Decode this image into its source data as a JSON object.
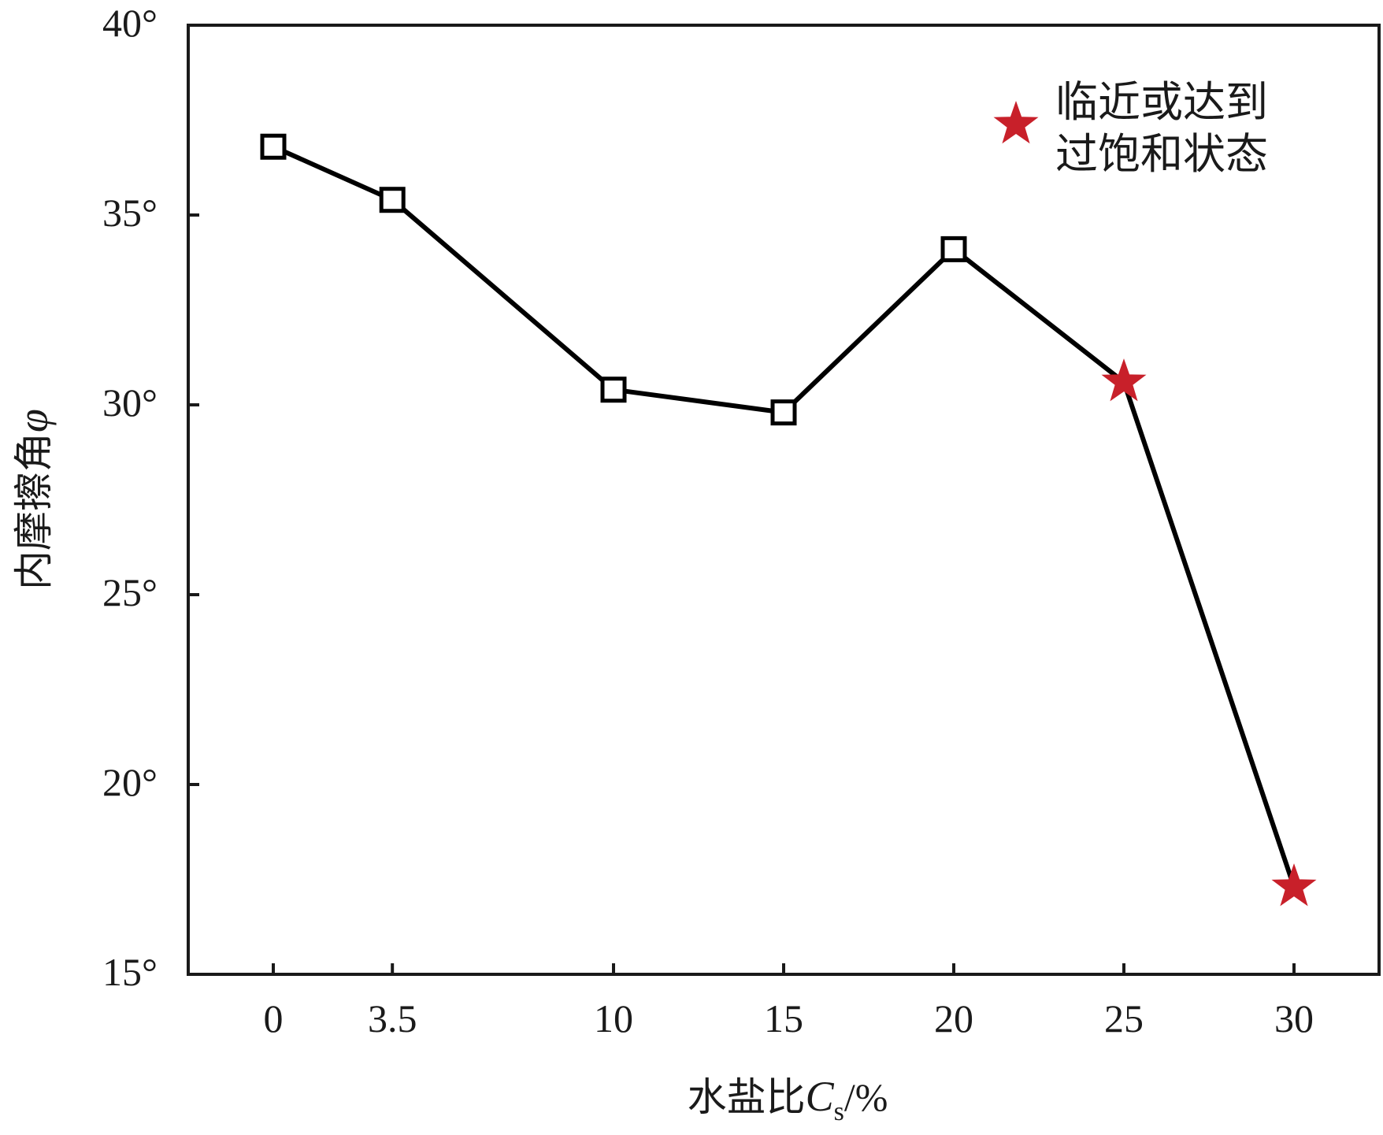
{
  "chart_data": {
    "type": "line",
    "x_ticks": [
      "0",
      "3.5",
      "10",
      "15",
      "20",
      "25",
      "30"
    ],
    "x_tick_values": [
      0,
      3.5,
      10,
      15,
      20,
      25,
      30
    ],
    "xlim": [
      -2.5,
      32.5
    ],
    "ylim": [
      15,
      40
    ],
    "y_tick_values": [
      15,
      20,
      25,
      30,
      35,
      40
    ],
    "y_ticks": [
      "15°",
      "20°",
      "25°",
      "30°",
      "35°",
      "40°"
    ],
    "xlabel": {
      "main": "水盐比",
      "var": "C",
      "sub": "s",
      "suffix": "/%"
    },
    "ylabel": {
      "main": "内摩擦角",
      "var": "φ"
    },
    "series": [
      {
        "marker": "square",
        "x": [
          0,
          3.5,
          10,
          15,
          20,
          25,
          30
        ],
        "y": [
          36.8,
          35.4,
          30.4,
          29.8,
          34.1,
          30.6,
          17.3
        ],
        "star_points": [
          25,
          30
        ]
      }
    ],
    "legend": {
      "position": "top-right",
      "marker": "star",
      "line1": "临近或达到",
      "line2": "过饱和状态"
    },
    "colors": {
      "line": "#000000",
      "star": "#c8202a",
      "axis": "#1a1a1a"
    }
  }
}
